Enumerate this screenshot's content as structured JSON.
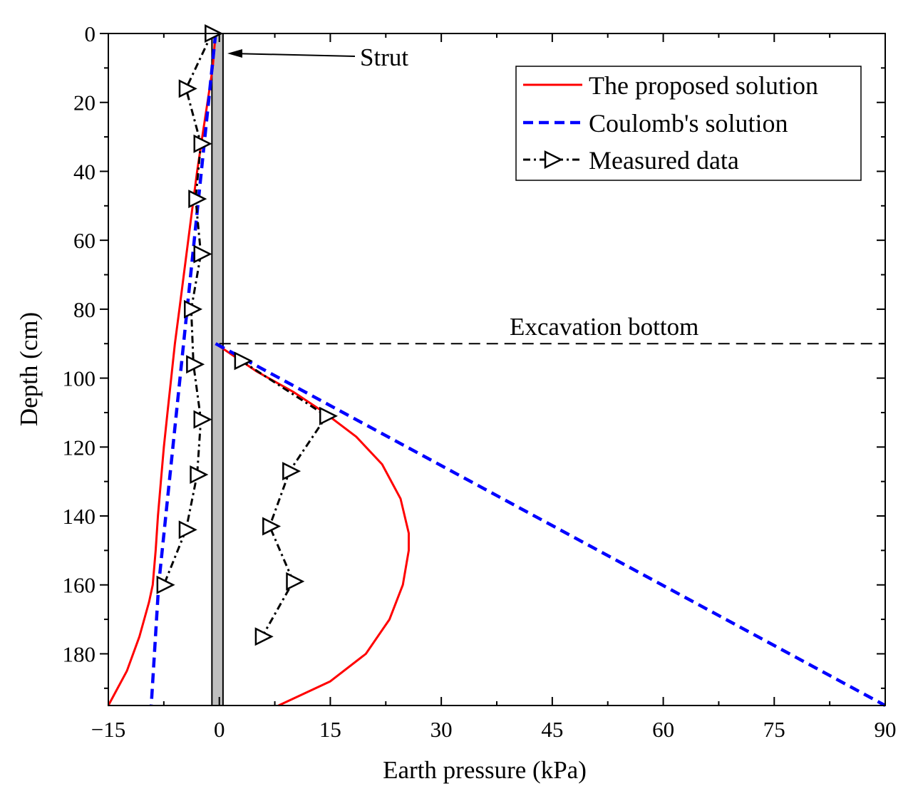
{
  "chart_data": {
    "type": "line",
    "title": "",
    "xlabel": "Earth pressure (kPa)",
    "ylabel": "Depth (cm)",
    "xlim": [
      -15,
      90
    ],
    "ylim": [
      195,
      0
    ],
    "x_ticks": [
      -15,
      0,
      15,
      30,
      45,
      60,
      75,
      90
    ],
    "x_tick_labels": [
      "−15",
      "0",
      "15",
      "30",
      "45",
      "60",
      "75",
      "90"
    ],
    "y_ticks": [
      0,
      20,
      40,
      60,
      80,
      100,
      120,
      140,
      160,
      180
    ],
    "y_tick_labels": [
      "0",
      "20",
      "40",
      "60",
      "80",
      "100",
      "120",
      "140",
      "160",
      "180"
    ],
    "series": [
      {
        "name": "The proposed solution",
        "color": "#ff0000",
        "style": "solid",
        "segments": [
          [
            [
              -0.5,
              0
            ],
            [
              -0.9,
              10
            ],
            [
              -1.6,
              20
            ],
            [
              -2.3,
              30
            ],
            [
              -3.0,
              40
            ],
            [
              -3.6,
              50
            ],
            [
              -4.2,
              60
            ],
            [
              -4.8,
              70
            ],
            [
              -5.4,
              80
            ],
            [
              -6.0,
              90
            ],
            [
              -6.5,
              100
            ],
            [
              -7.0,
              110
            ],
            [
              -7.5,
              120
            ],
            [
              -7.9,
              130
            ],
            [
              -8.3,
              140
            ],
            [
              -8.6,
              150
            ],
            [
              -9.0,
              160
            ],
            [
              -9.5,
              165
            ],
            [
              -10.8,
              175
            ],
            [
              -12.5,
              185
            ],
            [
              -15.0,
              195
            ]
          ],
          [
            [
              -0.5,
              90
            ],
            [
              5.0,
              98
            ],
            [
              10.0,
              104
            ],
            [
              14.2,
              110
            ],
            [
              18.5,
              117
            ],
            [
              22.0,
              125
            ],
            [
              24.5,
              135
            ],
            [
              25.6,
              145
            ],
            [
              25.6,
              150
            ],
            [
              24.8,
              160
            ],
            [
              23.0,
              170
            ],
            [
              19.8,
              180
            ],
            [
              15.0,
              188
            ],
            [
              8.0,
              195
            ]
          ]
        ]
      },
      {
        "name": "Coulomb's solution",
        "color": "#0000ff",
        "style": "dashed",
        "segments": [
          [
            [
              -0.5,
              0
            ],
            [
              -8.2,
              160
            ],
            [
              -9.2,
              195
            ]
          ],
          [
            [
              -0.5,
              90
            ],
            [
              90.0,
              195
            ]
          ]
        ]
      },
      {
        "name": "Measured data",
        "color": "#000000",
        "style": "dash-dot",
        "marker": "triangle-right",
        "points": [
          [
            -1.0,
            0
          ],
          [
            -4.5,
            16
          ],
          [
            -2.5,
            32
          ],
          [
            -3.2,
            48
          ],
          [
            -2.5,
            64
          ],
          [
            -3.8,
            80
          ],
          [
            -3.5,
            96
          ],
          [
            -2.5,
            112
          ],
          [
            -3.0,
            128
          ],
          [
            -4.5,
            144
          ],
          [
            -7.5,
            160
          ]
        ],
        "points_lower": [
          [
            3.0,
            95
          ],
          [
            14.5,
            111
          ],
          [
            9.5,
            127
          ],
          [
            6.8,
            143
          ],
          [
            10.0,
            159
          ],
          [
            5.8,
            175
          ]
        ]
      }
    ],
    "structure": {
      "name": "Strut",
      "x_range": [
        -1.0,
        0.5
      ],
      "fill": "#bfbfbf"
    },
    "annotations": {
      "strut_label": "Strut",
      "excavation_label": "Excavation bottom",
      "excavation_depth": 90
    },
    "legend": {
      "position": "top-right",
      "entries": [
        "The proposed solution",
        "Coulomb's solution",
        "Measured data"
      ]
    }
  }
}
